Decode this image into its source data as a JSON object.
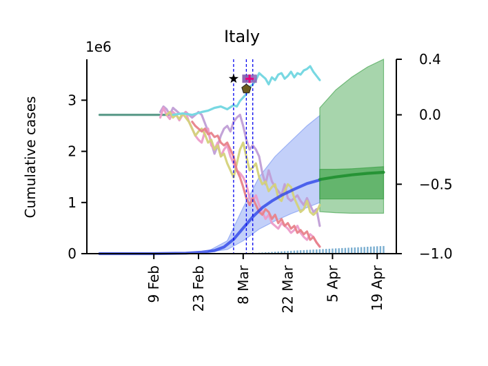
{
  "chart_data": {
    "type": "line",
    "title": "Italy",
    "ylabel": "Cumulative cases",
    "offset_label": "1e6",
    "left_axis": {
      "ylim": [
        0,
        3800000
      ],
      "ticks": [
        0,
        1000000,
        2000000,
        3000000
      ],
      "tick_labels": [
        "0",
        "1",
        "2",
        "3"
      ]
    },
    "right_axis": {
      "ylim": [
        -1.0,
        0.4
      ],
      "ticks": [
        -1.0,
        -0.5,
        0.0,
        0.4
      ],
      "tick_labels": [
        "−1.0",
        "−0.5",
        "0.0",
        "0.4"
      ]
    },
    "x_axis": {
      "type": "date",
      "xlim": [
        "2020-01-19",
        "2020-04-25"
      ],
      "ticks": [
        "2020-02-09",
        "2020-02-23",
        "2020-03-08",
        "2020-03-22",
        "2020-04-05",
        "2020-04-19"
      ],
      "tick_labels": [
        "9 Feb",
        "23 Feb",
        "8 Mar",
        "22 Mar",
        "5 Apr",
        "19 Apr"
      ]
    },
    "vlines": [
      "2020-03-05",
      "2020-03-09",
      "2020-03-11"
    ],
    "markers": [
      {
        "date": "2020-03-05",
        "value": 3420000,
        "shape": "star",
        "color": "#000000"
      },
      {
        "date": "2020-03-09",
        "value": 3420000,
        "shape": "square",
        "color": "#7b4fa8"
      },
      {
        "date": "2020-03-11",
        "value": 3420000,
        "shape": "square",
        "color": "#8a63b9"
      },
      {
        "date": "2020-03-10",
        "value": 3420000,
        "shape": "plus",
        "color": "#e6007e"
      },
      {
        "date": "2020-03-09",
        "value": 3220000,
        "shape": "pentagon",
        "color": "#6b5a1e"
      }
    ],
    "series": [
      {
        "axis": "right",
        "color": "#5f9d8c",
        "width": 3.2,
        "alpha": 1.0,
        "x": [
          "2020-01-23",
          "2020-02-01",
          "2020-02-10",
          "2020-02-16"
        ],
        "values": [
          0.0,
          0.0,
          0.0,
          0.0
        ]
      },
      {
        "axis": "right",
        "color": "#c09ed6",
        "width": 3.2,
        "alpha": 0.95,
        "x": [
          "2020-02-11",
          "2020-02-12",
          "2020-02-13",
          "2020-02-14",
          "2020-02-15",
          "2020-02-16",
          "2020-02-17",
          "2020-02-18",
          "2020-02-19",
          "2020-02-20",
          "2020-02-21",
          "2020-02-22",
          "2020-02-23",
          "2020-02-24",
          "2020-02-25",
          "2020-02-26",
          "2020-02-27",
          "2020-02-28",
          "2020-02-29",
          "2020-03-01",
          "2020-03-02",
          "2020-03-03",
          "2020-03-04",
          "2020-03-05",
          "2020-03-06",
          "2020-03-07",
          "2020-03-08",
          "2020-03-09",
          "2020-03-10",
          "2020-03-11",
          "2020-03-12",
          "2020-03-13",
          "2020-03-14",
          "2020-03-15",
          "2020-03-16",
          "2020-03-17",
          "2020-03-18",
          "2020-03-19",
          "2020-03-20",
          "2020-03-21",
          "2020-03-22",
          "2020-03-23",
          "2020-03-24",
          "2020-03-25",
          "2020-03-26",
          "2020-03-27",
          "2020-03-28",
          "2020-03-29",
          "2020-03-30",
          "2020-03-31",
          "2020-04-01"
        ],
        "values": [
          0.02,
          0.06,
          0.04,
          0.0,
          0.05,
          0.03,
          0.01,
          0.0,
          0.02,
          0.0,
          -0.02,
          0.0,
          0.02,
          0.0,
          -0.06,
          -0.12,
          -0.2,
          -0.28,
          -0.22,
          -0.15,
          -0.1,
          -0.08,
          -0.12,
          -0.05,
          -0.02,
          0.0,
          -0.08,
          -0.18,
          -0.25,
          -0.22,
          -0.25,
          -0.3,
          -0.42,
          -0.5,
          -0.4,
          -0.48,
          -0.52,
          -0.55,
          -0.58,
          -0.5,
          -0.6,
          -0.62,
          -0.6,
          -0.58,
          -0.62,
          -0.65,
          -0.6,
          -0.65,
          -0.7,
          -0.68,
          -0.8
        ]
      },
      {
        "axis": "right",
        "color": "#ec9cc9",
        "width": 3.2,
        "alpha": 0.95,
        "x": [
          "2020-02-11",
          "2020-02-12",
          "2020-02-13",
          "2020-02-14",
          "2020-02-15",
          "2020-02-16",
          "2020-02-17",
          "2020-02-18",
          "2020-02-19",
          "2020-02-20",
          "2020-02-21",
          "2020-02-22",
          "2020-02-23",
          "2020-02-24",
          "2020-02-25",
          "2020-02-26",
          "2020-02-27",
          "2020-02-28",
          "2020-02-29",
          "2020-03-01",
          "2020-03-02",
          "2020-03-03",
          "2020-03-04",
          "2020-03-05",
          "2020-03-06",
          "2020-03-07",
          "2020-03-08",
          "2020-03-09",
          "2020-03-10",
          "2020-03-11",
          "2020-03-12",
          "2020-03-13",
          "2020-03-14",
          "2020-03-15",
          "2020-03-16",
          "2020-03-17",
          "2020-03-18",
          "2020-03-19",
          "2020-03-20",
          "2020-03-21",
          "2020-03-22",
          "2020-03-23",
          "2020-03-24",
          "2020-03-25",
          "2020-03-26",
          "2020-03-27",
          "2020-03-28",
          "2020-03-29",
          "2020-03-30",
          "2020-03-31",
          "2020-04-01"
        ],
        "values": [
          -0.02,
          0.05,
          0.0,
          -0.03,
          0.02,
          0.0,
          -0.04,
          0.0,
          0.02,
          -0.05,
          -0.1,
          -0.15,
          -0.18,
          -0.2,
          -0.12,
          -0.1,
          -0.22,
          -0.25,
          -0.2,
          -0.3,
          -0.25,
          -0.22,
          -0.3,
          -0.35,
          -0.4,
          -0.42,
          -0.45,
          -0.5,
          -0.6,
          -0.62,
          -0.58,
          -0.65,
          -0.7,
          -0.75,
          -0.72,
          -0.78,
          -0.8,
          -0.82,
          -0.78,
          -0.8,
          -0.82,
          -0.85,
          -0.83,
          -0.8,
          -0.85,
          -0.88,
          -0.9,
          -0.86,
          -0.88,
          -0.92,
          -0.95
        ]
      },
      {
        "axis": "right",
        "color": "#d4d27a",
        "width": 3.2,
        "alpha": 0.95,
        "x": [
          "2020-02-13",
          "2020-02-14",
          "2020-02-15",
          "2020-02-16",
          "2020-02-17",
          "2020-02-18",
          "2020-02-19",
          "2020-02-20",
          "2020-02-21",
          "2020-02-22",
          "2020-02-23",
          "2020-02-24",
          "2020-02-25",
          "2020-02-26",
          "2020-02-27",
          "2020-02-28",
          "2020-02-29",
          "2020-03-01",
          "2020-03-02",
          "2020-03-03",
          "2020-03-04",
          "2020-03-05",
          "2020-03-06",
          "2020-03-07",
          "2020-03-08",
          "2020-03-09",
          "2020-03-10",
          "2020-03-11",
          "2020-03-12",
          "2020-03-13",
          "2020-03-14",
          "2020-03-15",
          "2020-03-16",
          "2020-03-17",
          "2020-03-18",
          "2020-03-19",
          "2020-03-20",
          "2020-03-21",
          "2020-03-22",
          "2020-03-23",
          "2020-03-24",
          "2020-03-25",
          "2020-03-26",
          "2020-03-27",
          "2020-03-28",
          "2020-03-29",
          "2020-03-30",
          "2020-03-31",
          "2020-04-01"
        ],
        "values": [
          0.0,
          0.02,
          -0.02,
          0.0,
          -0.03,
          0.01,
          -0.02,
          -0.05,
          -0.1,
          -0.15,
          -0.12,
          -0.1,
          -0.14,
          -0.2,
          -0.18,
          -0.25,
          -0.22,
          -0.3,
          -0.28,
          -0.35,
          -0.4,
          -0.45,
          -0.35,
          -0.25,
          -0.2,
          -0.3,
          -0.4,
          -0.38,
          -0.35,
          -0.45,
          -0.5,
          -0.48,
          -0.55,
          -0.52,
          -0.5,
          -0.6,
          -0.62,
          -0.55,
          -0.5,
          -0.52,
          -0.6,
          -0.65,
          -0.7,
          -0.68,
          -0.62,
          -0.7,
          -0.72,
          -0.7,
          -0.65
        ]
      },
      {
        "axis": "right",
        "color": "#e8828a",
        "width": 3.2,
        "alpha": 0.95,
        "x": [
          "2020-02-21",
          "2020-02-22",
          "2020-02-23",
          "2020-02-24",
          "2020-02-25",
          "2020-02-26",
          "2020-02-27",
          "2020-02-28",
          "2020-02-29",
          "2020-03-01",
          "2020-03-02",
          "2020-03-03",
          "2020-03-04",
          "2020-03-05",
          "2020-03-06",
          "2020-03-07",
          "2020-03-08",
          "2020-03-09",
          "2020-03-10",
          "2020-03-11",
          "2020-03-12",
          "2020-03-13",
          "2020-03-14",
          "2020-03-15",
          "2020-03-16",
          "2020-03-17",
          "2020-03-18",
          "2020-03-19",
          "2020-03-20",
          "2020-03-21",
          "2020-03-22",
          "2020-03-23",
          "2020-03-24",
          "2020-03-25",
          "2020-03-26",
          "2020-03-27",
          "2020-03-28",
          "2020-03-29",
          "2020-03-30",
          "2020-03-31",
          "2020-04-01"
        ],
        "values": [
          -0.05,
          -0.08,
          -0.1,
          -0.12,
          -0.1,
          -0.14,
          -0.13,
          -0.16,
          -0.15,
          -0.2,
          -0.22,
          -0.2,
          -0.25,
          -0.3,
          -0.4,
          -0.45,
          -0.52,
          -0.6,
          -0.65,
          -0.6,
          -0.65,
          -0.7,
          -0.72,
          -0.68,
          -0.7,
          -0.75,
          -0.72,
          -0.78,
          -0.75,
          -0.8,
          -0.78,
          -0.82,
          -0.8,
          -0.85,
          -0.83,
          -0.86,
          -0.84,
          -0.9,
          -0.88,
          -0.92,
          -0.95
        ]
      },
      {
        "axis": "right",
        "color": "#78d8e2",
        "width": 3.2,
        "alpha": 1.0,
        "x": [
          "2020-02-15",
          "2020-02-18",
          "2020-02-21",
          "2020-02-24",
          "2020-02-26",
          "2020-02-28",
          "2020-03-01",
          "2020-03-03",
          "2020-03-05",
          "2020-03-06",
          "2020-03-07",
          "2020-03-09",
          "2020-03-10",
          "2020-03-11",
          "2020-03-12",
          "2020-03-13",
          "2020-03-14",
          "2020-03-15",
          "2020-03-16",
          "2020-03-17",
          "2020-03-18",
          "2020-03-19",
          "2020-03-20",
          "2020-03-21",
          "2020-03-22",
          "2020-03-23",
          "2020-03-24",
          "2020-03-25",
          "2020-03-26",
          "2020-03-27",
          "2020-03-28",
          "2020-03-29",
          "2020-03-30",
          "2020-03-31",
          "2020-04-01"
        ],
        "values": [
          0.0,
          0.01,
          0.0,
          0.02,
          0.03,
          0.05,
          0.06,
          0.04,
          0.07,
          0.06,
          0.1,
          0.15,
          0.2,
          0.22,
          0.25,
          0.3,
          0.28,
          0.26,
          0.22,
          0.27,
          0.25,
          0.29,
          0.3,
          0.26,
          0.28,
          0.31,
          0.27,
          0.3,
          0.29,
          0.32,
          0.33,
          0.35,
          0.31,
          0.28,
          0.25
        ]
      },
      {
        "axis": "left",
        "color": "#2d45e8",
        "width": 4.2,
        "alpha": 0.8,
        "x": [
          "2020-01-23",
          "2020-02-09",
          "2020-02-19",
          "2020-02-24",
          "2020-02-28",
          "2020-03-02",
          "2020-03-05",
          "2020-03-08",
          "2020-03-11",
          "2020-03-14",
          "2020-03-17",
          "2020-03-20",
          "2020-03-24",
          "2020-03-28",
          "2020-04-01"
        ],
        "values": [
          0,
          0,
          10000,
          30000,
          60000,
          130000,
          280000,
          500000,
          720000,
          900000,
          1030000,
          1140000,
          1260000,
          1370000,
          1440000
        ]
      },
      {
        "axis": "left",
        "color": "#1f8f2f",
        "width": 4.2,
        "alpha": 0.9,
        "x": [
          "2020-04-01",
          "2020-04-06",
          "2020-04-11",
          "2020-04-16",
          "2020-04-21"
        ],
        "values": [
          1450000,
          1500000,
          1540000,
          1570000,
          1590000
        ]
      }
    ],
    "bands": [
      {
        "axis": "left",
        "color": "#6f8ff0",
        "alpha": 0.42,
        "x": [
          "2020-02-26",
          "2020-03-03",
          "2020-03-08",
          "2020-03-13",
          "2020-03-18",
          "2020-03-23",
          "2020-03-28",
          "2020-04-01"
        ],
        "lower": [
          30000,
          80000,
          250000,
          480000,
          640000,
          780000,
          900000,
          1000000
        ],
        "upper": [
          50000,
          250000,
          900000,
          1500000,
          1900000,
          2200000,
          2500000,
          2700000
        ]
      },
      {
        "axis": "left",
        "color": "#2e9a3a",
        "alpha": 0.42,
        "x": [
          "2020-04-01",
          "2020-04-06",
          "2020-04-11",
          "2020-04-16",
          "2020-04-21"
        ],
        "lower": [
          820000,
          800000,
          790000,
          790000,
          790000
        ],
        "upper": [
          2850000,
          3200000,
          3450000,
          3650000,
          3800000
        ]
      },
      {
        "axis": "left",
        "color": "#2e9a3a",
        "alpha": 0.55,
        "x": [
          "2020-04-01",
          "2020-04-06",
          "2020-04-11",
          "2020-04-16",
          "2020-04-21"
        ],
        "lower": [
          1070000,
          1070000,
          1070000,
          1070000,
          1070000
        ],
        "upper": [
          1650000,
          1650000,
          1660000,
          1680000,
          1700000
        ]
      }
    ],
    "bars": {
      "axis": "left",
      "color": "#7aaed0",
      "start": "2020-03-10",
      "end": "2020-04-21",
      "from": 5000,
      "to": 150000
    }
  }
}
